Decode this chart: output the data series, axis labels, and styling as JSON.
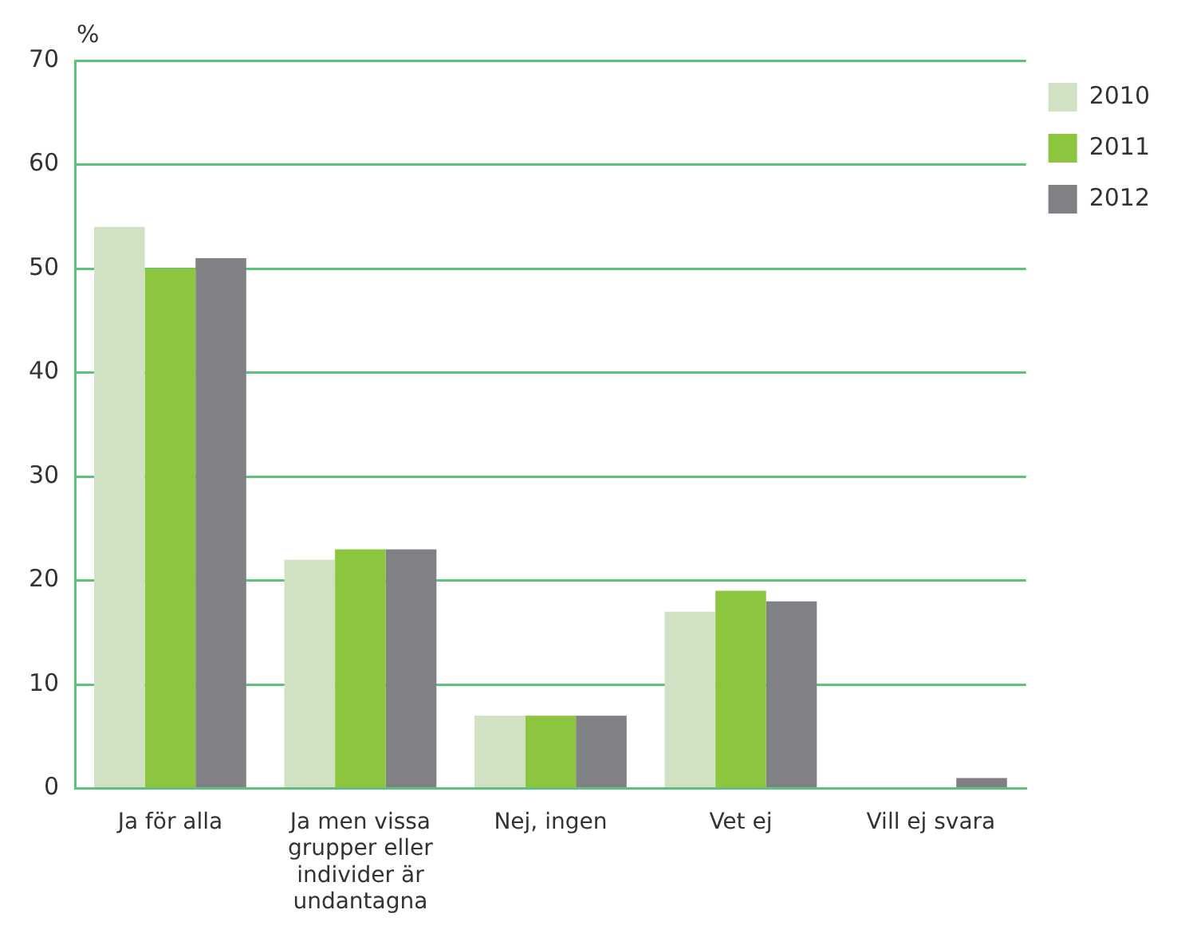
{
  "chart_data": {
    "type": "bar",
    "ylabel": "%",
    "categories": [
      "Ja för alla",
      "Ja men vissa grupper eller individer är undantagna",
      "Nej, ingen",
      "Vet ej",
      "Vill ej svara"
    ],
    "series": [
      {
        "name": "2010",
        "color": "#d0e1c4",
        "values": [
          54,
          22,
          7,
          17,
          0
        ]
      },
      {
        "name": "2011",
        "color": "#8cc63f",
        "values": [
          50,
          23,
          7,
          19,
          0
        ]
      },
      {
        "name": "2012",
        "color": "#808184",
        "values": [
          51,
          23,
          7,
          18,
          1
        ]
      }
    ],
    "ylim": [
      0,
      70
    ],
    "yticks": [
      0,
      10,
      20,
      30,
      40,
      50,
      60,
      70
    ],
    "grid": "y",
    "legend": "top right"
  }
}
